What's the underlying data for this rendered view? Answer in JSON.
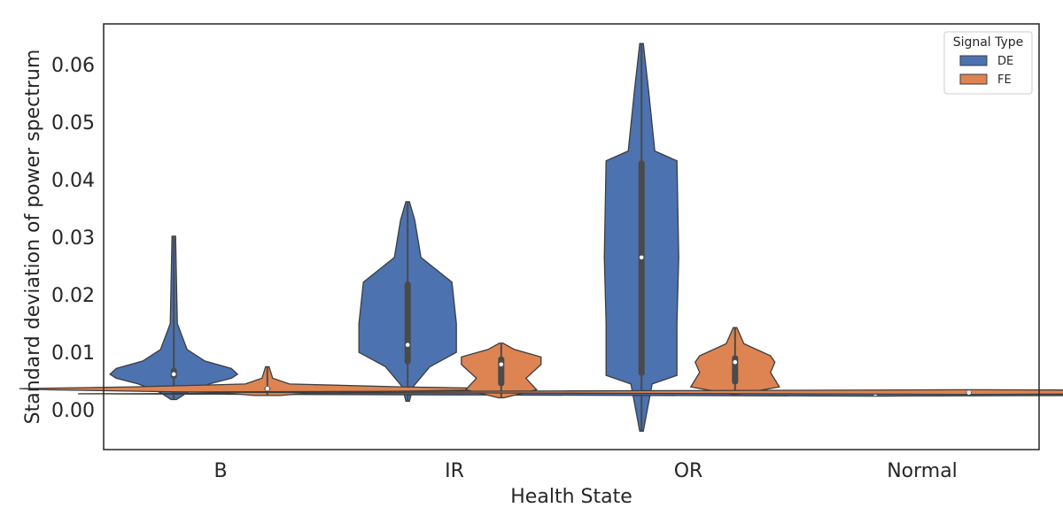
{
  "chart_data": {
    "type": "violin",
    "title": "",
    "xlabel": "Health State",
    "ylabel": "Standard deviation of power spectrum",
    "categories": [
      "B",
      "IR",
      "OR",
      "Normal"
    ],
    "ylim": [
      -0.0069,
      0.0671
    ],
    "yticks": [
      0.0,
      0.01,
      0.02,
      0.03,
      0.04,
      0.05,
      0.06
    ],
    "ytick_labels": [
      "0.00",
      "0.01",
      "0.02",
      "0.03",
      "0.04",
      "0.05",
      "0.06"
    ],
    "grid": false,
    "legend": {
      "title": "Signal Type",
      "position": "upper right"
    },
    "series": [
      {
        "name": "DE",
        "color": "#4c72b0",
        "violins": [
          {
            "category": "B",
            "min": 0.0018,
            "q1": 0.0055,
            "median": 0.0062,
            "q3": 0.0072,
            "max": 0.0302,
            "profile": [
              [
                0.0018,
                0.0003
              ],
              [
                0.003,
                0.0015
              ],
              [
                0.0045,
                0.004
              ],
              [
                0.0055,
                0.0065
              ],
              [
                0.0062,
                0.0072
              ],
              [
                0.0072,
                0.0065
              ],
              [
                0.0085,
                0.0035
              ],
              [
                0.0105,
                0.0015
              ],
              [
                0.015,
                0.0004
              ],
              [
                0.0302,
                0.0002
              ]
            ]
          },
          {
            "category": "IR",
            "min": 0.0015,
            "q1": 0.008,
            "median": 0.0113,
            "q3": 0.0222,
            "max": 0.0362,
            "profile": [
              [
                0.0015,
                0.0002
              ],
              [
                0.004,
                0.0006
              ],
              [
                0.0075,
                0.0025
              ],
              [
                0.01,
                0.0055
              ],
              [
                0.0113,
                0.0055
              ],
              [
                0.015,
                0.0055
              ],
              [
                0.0222,
                0.005
              ],
              [
                0.0265,
                0.0015
              ],
              [
                0.033,
                0.0008
              ],
              [
                0.0362,
                0.0002
              ]
            ]
          },
          {
            "category": "OR",
            "min": -0.0037,
            "q1": 0.006,
            "median": 0.0265,
            "q3": 0.0433,
            "max": 0.0637,
            "profile": [
              [
                -0.0037,
                0.0002
              ],
              [
                0.0045,
                0.0012
              ],
              [
                0.006,
                0.004
              ],
              [
                0.015,
                0.004
              ],
              [
                0.0265,
                0.0042
              ],
              [
                0.0433,
                0.004
              ],
              [
                0.045,
                0.0015
              ],
              [
                0.0555,
                0.0008
              ],
              [
                0.0637,
                0.0002
              ]
            ]
          },
          {
            "category": "Normal",
            "min": 0.0027,
            "q1": 0.0027,
            "median": 0.0028,
            "q3": 0.0028,
            "max": 0.0029,
            "profile": [
              [
                0.0024,
                0.001
              ],
              [
                0.0026,
                0.045
              ],
              [
                0.0028,
                0.09
              ],
              [
                0.003,
                0.045
              ],
              [
                0.0032,
                0.001
              ]
            ]
          }
        ]
      },
      {
        "name": "FE",
        "color": "#dd8452",
        "violins": [
          {
            "category": "B",
            "min": 0.0025,
            "q1": 0.0034,
            "median": 0.0037,
            "q3": 0.004,
            "max": 0.0075,
            "profile": [
              [
                0.0025,
                0.0015
              ],
              [
                0.003,
                0.005
              ],
              [
                0.0035,
                0.025
              ],
              [
                0.0037,
                0.028
              ],
              [
                0.004,
                0.015
              ],
              [
                0.0045,
                0.0025
              ],
              [
                0.0055,
                0.0006
              ],
              [
                0.0075,
                0.0002
              ]
            ]
          },
          {
            "category": "IR",
            "min": 0.0021,
            "q1": 0.0042,
            "median": 0.0079,
            "q3": 0.0092,
            "max": 0.0116,
            "profile": [
              [
                0.0021,
                0.0003
              ],
              [
                0.0035,
                0.004
              ],
              [
                0.0055,
                0.0028
              ],
              [
                0.0079,
                0.0045
              ],
              [
                0.0092,
                0.0045
              ],
              [
                0.0105,
                0.0015
              ],
              [
                0.0116,
                0.0002
              ]
            ]
          },
          {
            "category": "OR",
            "min": 0.0027,
            "q1": 0.0045,
            "median": 0.0083,
            "q3": 0.0094,
            "max": 0.0143,
            "profile": [
              [
                0.0027,
                0.0003
              ],
              [
                0.004,
                0.005
              ],
              [
                0.0065,
                0.004
              ],
              [
                0.0083,
                0.0045
              ],
              [
                0.0094,
                0.004
              ],
              [
                0.0115,
                0.001
              ],
              [
                0.0143,
                0.0002
              ]
            ]
          },
          {
            "category": "Normal",
            "min": 0.003,
            "q1": 0.003,
            "median": 0.003,
            "q3": 0.0031,
            "max": 0.0031,
            "profile": [
              [
                0.0027,
                0.001
              ],
              [
                0.0029,
                0.045
              ],
              [
                0.0031,
                0.09
              ],
              [
                0.0033,
                0.045
              ],
              [
                0.0035,
                0.001
              ]
            ]
          }
        ]
      }
    ]
  }
}
